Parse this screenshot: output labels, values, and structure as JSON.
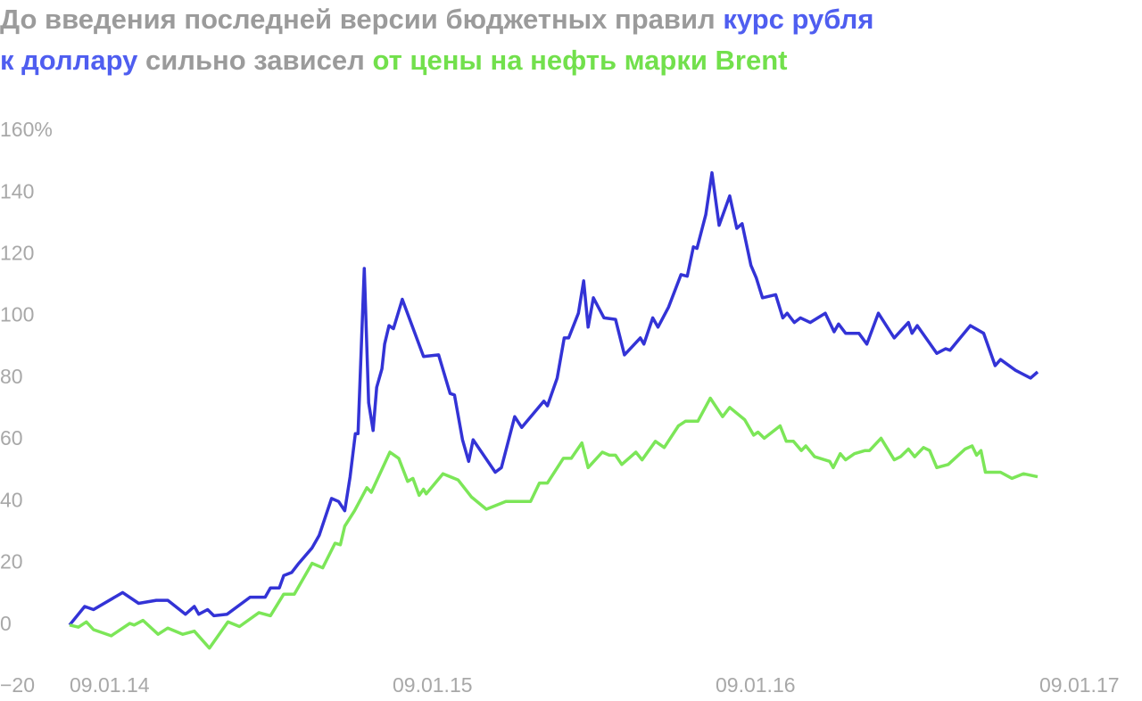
{
  "chart_data": {
    "type": "line",
    "title": [
      [
        {
          "text": "До введения последней версии бюджетных правил ",
          "color": "#9b9b9b"
        },
        {
          "text": "курс рубля",
          "color": "#4f5ef0"
        }
      ],
      [
        {
          "text": "к доллару",
          "color": "#4f5ef0"
        },
        {
          "text": " сильно зависел ",
          "color": "#9b9b9b"
        },
        {
          "text": "от цены на нефть марки Brent",
          "color": "#72e04c"
        }
      ]
    ],
    "xlim": [
      "09.01.14",
      "09.01.17"
    ],
    "xticks": [
      "09.01.14",
      "09.01.15",
      "09.01.16",
      "09.01.17"
    ],
    "ylim": [
      -20,
      160
    ],
    "yticks": [
      {
        "value": -20,
        "label": "−20"
      },
      0,
      20,
      40,
      60,
      80,
      100,
      120,
      140,
      {
        "value": 160,
        "label": "160%"
      }
    ],
    "series": [
      {
        "color": "#3333d6",
        "x": [
          "09.01.14",
          "26.01.14",
          "05.02.14",
          "10.03.14",
          "28.03.14",
          "17.04.14",
          "30.04.14",
          "20.05.14",
          "30.05.14",
          "04.06.14",
          "14.06.14",
          "21.06.14",
          "06.07.14",
          "01.08.14",
          "18.08.14",
          "24.08.14",
          "03.09.14",
          "08.09.14",
          "17.09.14",
          "25.09.14",
          "10.10.14",
          "18.10.14",
          "01.11.14",
          "09.11.14",
          "16.11.14",
          "22.11.14",
          "28.11.14",
          "01.12.14",
          "08.12.14",
          "13.12.14",
          "18.12.14",
          "22.12.14",
          "28.12.14",
          "31.12.14",
          "05.01.15",
          "10.01.15",
          "20.01.15",
          "13.02.15",
          "02.03.15",
          "15.03.15",
          "20.03.15",
          "29.03.15",
          "05.04.15",
          "10.04.15",
          "05.05.15",
          "12.05.15",
          "27.05.15",
          "04.06.15",
          "29.06.15",
          "03.07.15",
          "14.07.15",
          "22.07.15",
          "27.07.15",
          "07.08.15",
          "13.08.15",
          "18.08.15",
          "24.08.15",
          "05.09.15",
          "18.09.15",
          "28.09.15",
          "16.10.15",
          "20.10.15",
          "30.10.15",
          "05.11.15",
          "17.11.15",
          "01.12.15",
          "08.12.15",
          "15.12.15",
          "19.12.15",
          "29.12.15",
          "05.01.16",
          "13.01.16",
          "25.01.16",
          "02.02.16",
          "08.02.16",
          "18.02.16",
          "24.02.16",
          "02.03.16",
          "17.03.16",
          "25.03.16",
          "30.03.16",
          "07.04.16",
          "14.04.16",
          "25.04.16",
          "12.05.16",
          "22.05.16",
          "27.05.16",
          "04.06.16",
          "19.06.16",
          "28.06.16",
          "11.07.16",
          "29.07.16",
          "14.08.16",
          "18.08.16",
          "24.08.16",
          "15.09.16",
          "25.09.16",
          "30.09.16",
          "23.10.16",
          "07.11.16",
          "20.11.16",
          "26.11.16",
          "13.12.16",
          "30.12.16",
          "07.01.17"
        ],
        "values": [
          0,
          6,
          5,
          10.5,
          7,
          8,
          8,
          3.5,
          6,
          3.5,
          5,
          3,
          3.5,
          9,
          9,
          12,
          12,
          16,
          17,
          20,
          25,
          29,
          41,
          40,
          37,
          48,
          62,
          62,
          115.5,
          72,
          63,
          77,
          83,
          91,
          97,
          96,
          105.5,
          87,
          87.5,
          75,
          74.5,
          60,
          53,
          60,
          49.5,
          51,
          67.5,
          64,
          72.5,
          71,
          80,
          93,
          93,
          101,
          111.5,
          96.5,
          106,
          99.5,
          99,
          87.5,
          93,
          91,
          99.5,
          96.5,
          103,
          113.5,
          113,
          122.5,
          122,
          133,
          146.5,
          129.5,
          139,
          128.5,
          130,
          116.5,
          112.5,
          106,
          107,
          99.5,
          101,
          98,
          99.5,
          98,
          101,
          95,
          97.5,
          94.5,
          94.5,
          91,
          101,
          93,
          98,
          94.5,
          97,
          88,
          89.5,
          89,
          97,
          94.5,
          84,
          86,
          82.5,
          80,
          82
        ]
      },
      {
        "color": "#7ce658",
        "x": [
          "09.01.14",
          "19.01.14",
          "28.01.14",
          "05.02.14",
          "25.02.14",
          "18.03.14",
          "23.03.14",
          "02.04.14",
          "19.04.14",
          "30.04.14",
          "17.05.14",
          "30.05.14",
          "16.06.14",
          "07.07.14",
          "20.07.14",
          "11.08.14",
          "24.08.14",
          "08.09.14",
          "20.09.14",
          "10.10.14",
          "22.10.14",
          "05.11.14",
          "11.11.14",
          "16.11.14",
          "27.11.14",
          "11.12.14",
          "16.12.14",
          "06.01.15",
          "16.01.15",
          "26.01.15",
          "01.02.15",
          "08.02.15",
          "13.02.15",
          "16.02.15",
          "07.03.15",
          "24.03.15",
          "08.04.15",
          "25.04.15",
          "17.05.15",
          "14.06.15",
          "24.06.15",
          "03.07.15",
          "21.07.15",
          "30.07.15",
          "11.08.15",
          "18.08.15",
          "03.09.15",
          "11.09.15",
          "18.09.15",
          "25.09.15",
          "11.10.15",
          "18.10.15",
          "02.11.15",
          "12.11.15",
          "28.11.15",
          "06.12.15",
          "20.12.15",
          "03.01.16",
          "17.01.16",
          "25.01.16",
          "11.02.16",
          "21.02.16",
          "26.02.16",
          "04.03.16",
          "22.03.16",
          "29.03.16",
          "06.04.16",
          "15.04.16",
          "20.04.16",
          "30.04.16",
          "17.05.16",
          "21.05.16",
          "29.05.16",
          "04.06.16",
          "14.06.16",
          "26.06.16",
          "01.07.16",
          "14.07.16",
          "29.07.16",
          "05.08.16",
          "14.08.16",
          "21.08.16",
          "31.08.16",
          "07.09.16",
          "15.09.16",
          "28.09.16",
          "17.10.16",
          "25.10.16",
          "30.10.16",
          "04.11.16",
          "09.11.16",
          "26.11.16",
          "09.12.16",
          "22.12.16",
          "07.01.17"
        ],
        "values": [
          0,
          -0.7,
          1,
          -1.5,
          -3.5,
          0.5,
          0,
          1.5,
          -3,
          -1,
          -3,
          -2,
          -7.5,
          1,
          -0.5,
          4,
          3,
          10,
          10,
          20,
          18.5,
          26.5,
          26,
          32,
          37,
          44.5,
          43,
          56,
          54,
          46.5,
          47.5,
          42,
          44,
          42.5,
          49,
          47,
          41.5,
          37.5,
          40,
          40,
          46,
          46,
          54,
          54,
          59,
          51,
          56,
          55,
          55,
          52,
          56,
          53.5,
          59.5,
          57.5,
          64.5,
          66,
          66,
          73.5,
          67.5,
          70.5,
          66.5,
          61.5,
          62.5,
          60.5,
          64.5,
          59.5,
          59.5,
          56.5,
          58,
          54.5,
          53,
          51,
          55.5,
          53.5,
          55.5,
          56.5,
          56.5,
          60.5,
          53.5,
          54.5,
          57,
          54.5,
          57.5,
          56.5,
          51,
          52,
          57,
          58,
          55,
          56.5,
          49.5,
          49.5,
          47.5,
          49,
          48
        ]
      }
    ]
  }
}
